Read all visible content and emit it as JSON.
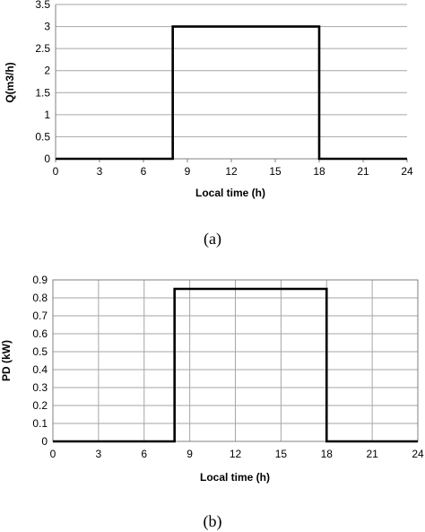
{
  "chart_data": [
    {
      "type": "line",
      "xlabel": "Local time (h)",
      "ylabel": "Q(m3/h)",
      "x_ticks": [
        "0",
        "3",
        "6",
        "9",
        "12",
        "15",
        "18",
        "21",
        "24"
      ],
      "y_ticks": [
        "0",
        "0.5",
        "1",
        "1.5",
        "2",
        "2.5",
        "3",
        "3.5"
      ],
      "xlim": [
        0,
        24
      ],
      "ylim": [
        0,
        3.5
      ],
      "grid": "horizontal",
      "series": [
        {
          "x": [
            0,
            8,
            8,
            18,
            18,
            24
          ],
          "y": [
            0,
            0,
            3,
            3,
            0,
            0
          ]
        }
      ],
      "caption": "(a)"
    },
    {
      "type": "line",
      "xlabel": "Local time (h)",
      "ylabel": "PD (kW)",
      "x_ticks": [
        "0",
        "3",
        "6",
        "9",
        "12",
        "15",
        "18",
        "21",
        "24"
      ],
      "y_ticks": [
        "0",
        "0.1",
        "0.2",
        "0.3",
        "0.4",
        "0.5",
        "0.6",
        "0.7",
        "0.8",
        "0.9"
      ],
      "xlim": [
        0,
        24
      ],
      "ylim": [
        0,
        0.9
      ],
      "grid": "both",
      "series": [
        {
          "x": [
            0,
            8,
            8,
            18,
            18,
            24
          ],
          "y": [
            0,
            0,
            0.85,
            0.85,
            0,
            0
          ]
        }
      ],
      "caption": "(b)"
    }
  ]
}
